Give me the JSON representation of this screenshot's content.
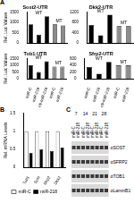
{
  "panel_labels": [
    "A",
    "B",
    "C"
  ],
  "chart_data": [
    {
      "type": "bar",
      "title": "Sost2-UTR",
      "y_label": "Rel. Luc Values",
      "categories": [
        null,
        null,
        null,
        null,
        null
      ],
      "series": [
        {
          "name": "WT",
          "color": "#000000",
          "values": [
            900,
            400,
            1300,
            null,
            null
          ]
        },
        {
          "name": "MT",
          "color": "#8c8c8c",
          "values": [
            null,
            null,
            null,
            900,
            850
          ]
        }
      ],
      "ylim": [
        0,
        1500
      ],
      "yticks": [
        0,
        500,
        1000,
        1500
      ],
      "grid": false,
      "tick_labels": "y"
    },
    {
      "type": "bar",
      "title": "Dkk2-UTR",
      "categories": [
        null,
        null,
        null,
        null,
        null
      ],
      "series": [
        {
          "name": "WT",
          "color": "#000000",
          "values": [
            700,
            300,
            1100,
            null,
            null
          ]
        },
        {
          "name": "MT",
          "color": "#8c8c8c",
          "values": [
            null,
            null,
            null,
            650,
            650
          ]
        }
      ],
      "ylim": [
        0,
        1200
      ],
      "yticks": [
        0,
        400,
        800,
        1200
      ],
      "grid": false,
      "tick_labels": "y"
    },
    {
      "type": "bar",
      "title": "Tob1-UTR",
      "y_label": "Rel. Luc Values",
      "categories": [
        "miR-C",
        "miR-218",
        "anti-miR-218",
        "miR-C",
        "miR-218"
      ],
      "series": [
        {
          "name": "WT",
          "color": "#000000",
          "values": [
            1000,
            500,
            1300,
            null,
            null
          ]
        },
        {
          "name": "MT",
          "color": "#8c8c8c",
          "values": [
            null,
            null,
            null,
            900,
            900
          ]
        }
      ],
      "ylim": [
        0,
        1500
      ],
      "yticks": [
        0,
        500,
        1000,
        1500
      ],
      "grid": false
    },
    {
      "type": "bar",
      "title": "Sfrp2-UTR",
      "categories": [
        "miR-C",
        "miR-218",
        "anti-miR-218",
        "miR-C",
        "miR-218"
      ],
      "series": [
        {
          "name": "WT",
          "color": "#000000",
          "values": [
            350,
            150,
            500,
            null,
            null
          ]
        },
        {
          "name": "MT",
          "color": "#8c8c8c",
          "values": [
            null,
            null,
            null,
            400,
            400
          ]
        }
      ],
      "ylim": [
        0,
        600
      ],
      "yticks": [
        0,
        200,
        400,
        600
      ],
      "grid": false
    },
    {
      "type": "bar",
      "y_label": "Rel. mRNA Levels",
      "categories": [
        "Tob1",
        "Sost",
        "Sfrp2",
        "Dkk2"
      ],
      "series": [
        {
          "name": "miR-C",
          "color": "#ffffff",
          "values": [
            1,
            1,
            1,
            1
          ]
        },
        {
          "name": "miR-218",
          "color": "#000000",
          "values": [
            0.4,
            0.5,
            0.45,
            0.55
          ]
        }
      ],
      "ylim": [
        0,
        1.5
      ],
      "yticks": [
        0,
        0.5,
        1,
        1.5
      ],
      "grid": false,
      "legend": "bottom"
    }
  ],
  "blot": {
    "time_points": [
      "7",
      "14",
      "21",
      "28"
    ],
    "lanes": [
      "miR-C",
      "miR-218",
      "miR-C",
      "miR-218",
      "miR-C",
      "miR-218",
      "miR-C",
      "miR-218"
    ],
    "rows": [
      "αSOST",
      "αSFRP2",
      "αTOB1",
      "αLaminB1"
    ]
  }
}
